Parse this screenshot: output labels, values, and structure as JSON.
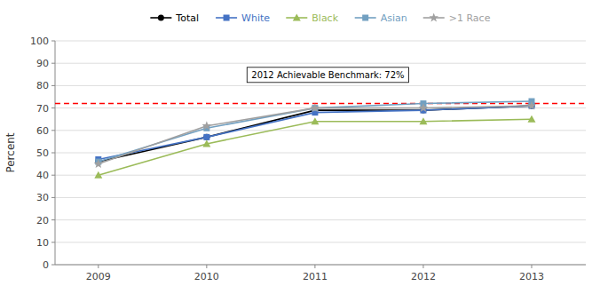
{
  "chart_data": {
    "type": "line",
    "x": [
      2009,
      2010,
      2011,
      2012,
      2013
    ],
    "xlim": [
      2008.6,
      2013.5
    ],
    "xticks": [
      2009,
      2010,
      2011,
      2012,
      2013
    ],
    "ylabel": "Percent",
    "ylim": [
      0,
      100
    ],
    "yticks": [
      0,
      10,
      20,
      30,
      40,
      50,
      60,
      70,
      80,
      90,
      100
    ],
    "grid": true,
    "legend": "top",
    "series": [
      {
        "name": "Total",
        "color": "#000000",
        "marker": "circle",
        "values": [
          46,
          57,
          69,
          69,
          71
        ]
      },
      {
        "name": "White",
        "color": "#4472C4",
        "marker": "square",
        "values": [
          47,
          57,
          68,
          69,
          71
        ]
      },
      {
        "name": "Black",
        "color": "#9BBB59",
        "marker": "triangle",
        "values": [
          40,
          54,
          64,
          64,
          65
        ]
      },
      {
        "name": "Asian",
        "color": "#72A0C1",
        "marker": "square",
        "values": [
          46,
          61,
          70,
          72,
          73
        ]
      },
      {
        "name": ">1 Race",
        "color": "#A0A0A0",
        "marker": "star",
        "values": [
          45,
          62,
          70,
          70,
          71
        ]
      }
    ],
    "reference_line": {
      "value": 72,
      "label": "2012 Achievable Benchmark: 72%",
      "color": "#FF0000",
      "line_style": "dashed"
    }
  }
}
